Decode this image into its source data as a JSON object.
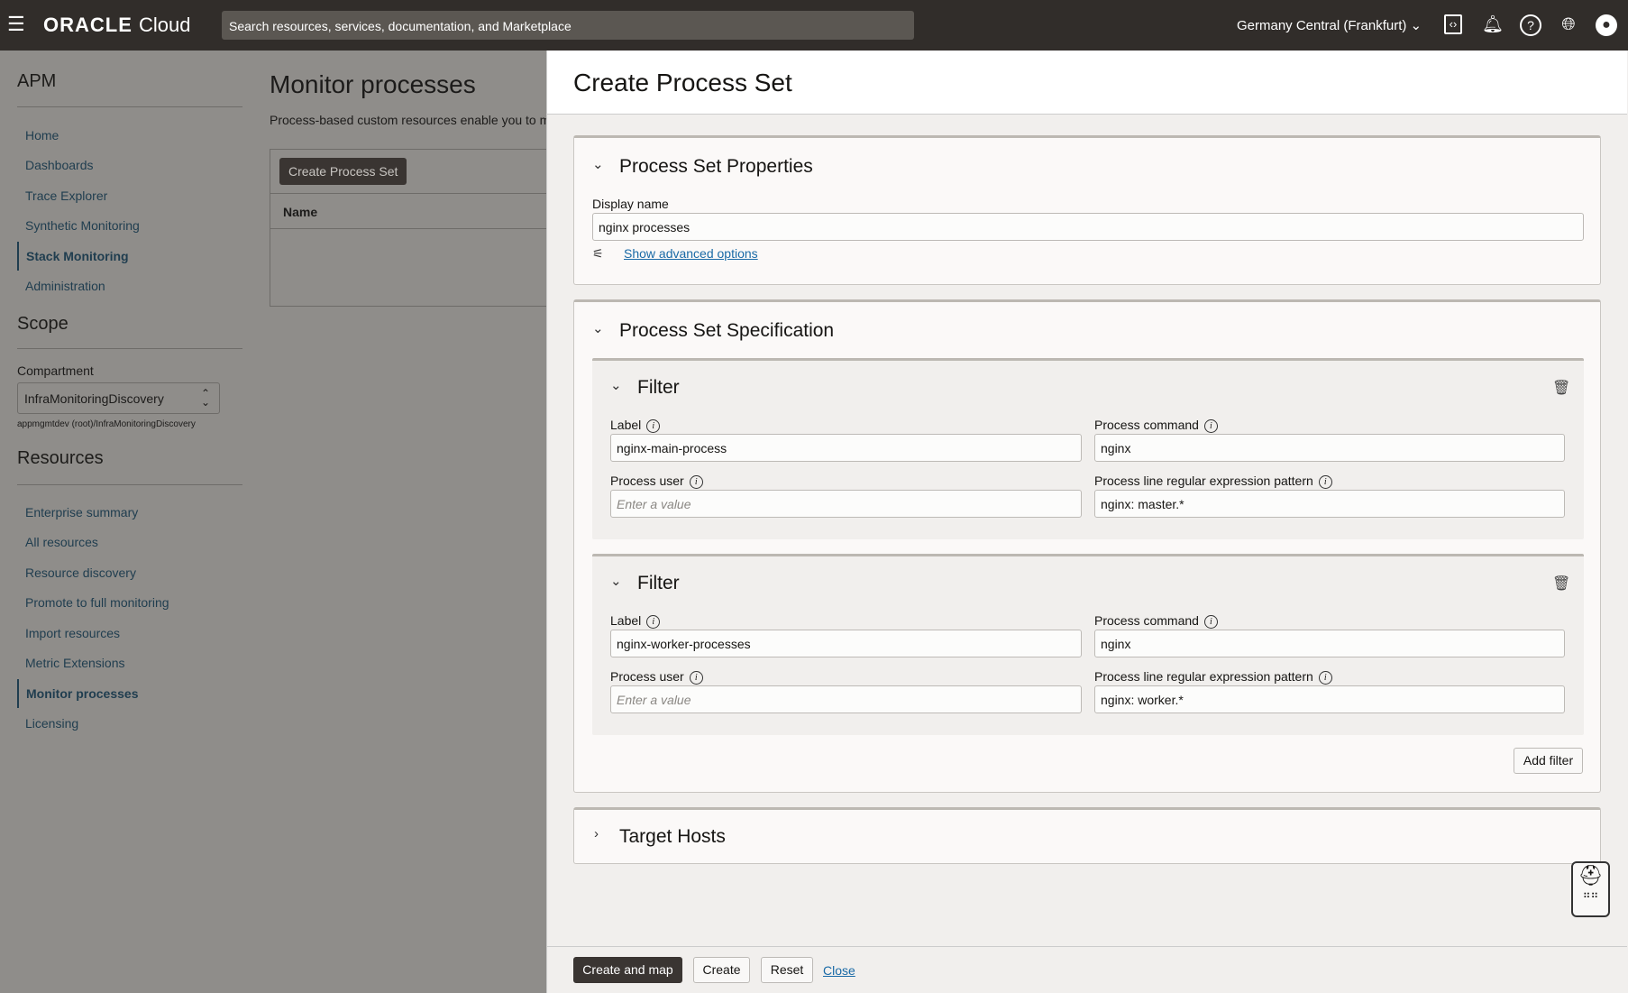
{
  "topbar": {
    "brand": "ORACLE",
    "brand_suffix": "Cloud",
    "search_placeholder": "Search resources, services, documentation, and Marketplace",
    "region": "Germany Central (Frankfurt)"
  },
  "sidebar": {
    "title": "APM",
    "nav": [
      "Home",
      "Dashboards",
      "Trace Explorer",
      "Synthetic Monitoring",
      "Stack Monitoring",
      "Administration"
    ],
    "active_nav": "Stack Monitoring",
    "scope_title": "Scope",
    "compartment_label": "Compartment",
    "compartment_value": "InfraMonitoringDiscovery",
    "compartment_path": "appmgmtdev (root)/InfraMonitoringDiscovery",
    "resources_title": "Resources",
    "resources": [
      "Enterprise summary",
      "All resources",
      "Resource discovery",
      "Promote to full monitoring",
      "Import resources",
      "Metric Extensions",
      "Monitor processes",
      "Licensing"
    ],
    "active_resource": "Monitor processes"
  },
  "page": {
    "title": "Monitor processes",
    "description": "Process-based custom resources enable you to m",
    "create_button": "Create Process Set",
    "table_header": "Name"
  },
  "drawer": {
    "title": "Create Process Set",
    "properties": {
      "title": "Process Set Properties",
      "display_name_label": "Display name",
      "display_name_value": "nginx processes",
      "advanced_link": "Show advanced options"
    },
    "specification": {
      "title": "Process Set Specification",
      "filters": [
        {
          "title": "Filter",
          "label_label": "Label",
          "label_value": "nginx-main-process",
          "command_label": "Process command",
          "command_value": "nginx",
          "user_label": "Process user",
          "user_placeholder": "Enter a value",
          "pattern_label": "Process line regular expression pattern",
          "pattern_value": "nginx: master.*"
        },
        {
          "title": "Filter",
          "label_label": "Label",
          "label_value": "nginx-worker-processes",
          "command_label": "Process command",
          "command_value": "nginx",
          "user_label": "Process user",
          "user_placeholder": "Enter a value",
          "pattern_label": "Process line regular expression pattern",
          "pattern_value": "nginx: worker.*"
        }
      ],
      "add_filter": "Add filter"
    },
    "target_hosts": {
      "title": "Target Hosts"
    },
    "footer": {
      "create_and_map": "Create and map",
      "create": "Create",
      "reset": "Reset",
      "close": "Close"
    }
  }
}
